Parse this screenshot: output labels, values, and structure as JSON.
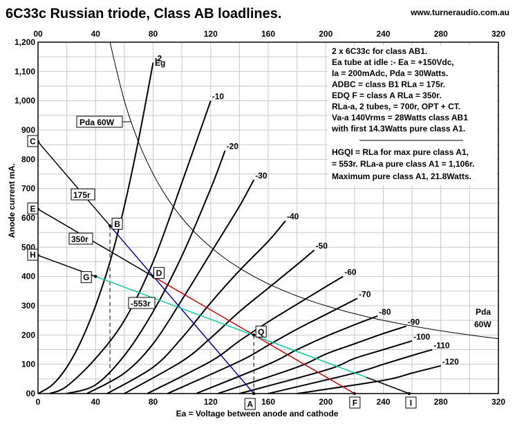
{
  "header": {
    "title": "6C33c Russian triode, Class AB loadlines.",
    "website": "www.turneraudio.com.au"
  },
  "chart_data": {
    "type": "line",
    "xlabel": "Ea = Voltage between anode and cathode",
    "ylabel": "Anode current mA.",
    "xlim": [
      0,
      320
    ],
    "ylim": [
      0,
      1200
    ],
    "x_ticks": [
      0,
      40,
      80,
      120,
      160,
      200,
      240,
      280,
      320
    ],
    "x_ticks_top": [
      0,
      40,
      80,
      120,
      160,
      200,
      240,
      280,
      320
    ],
    "y_ticks": [
      0,
      100,
      200,
      300,
      400,
      500,
      600,
      700,
      800,
      900,
      1000,
      1100,
      1200
    ],
    "y_tick_labels": [
      "00",
      "100",
      "200",
      "300",
      "400",
      "500",
      "600",
      "700",
      "800",
      "900",
      "1,000",
      "1,100",
      "1,200"
    ],
    "grid": true,
    "eg_label": "Eg",
    "grid_bias_curves": [
      {
        "name": "-2",
        "x": [
          0,
          10,
          20,
          30,
          40,
          50,
          60,
          70,
          80
        ],
        "y": [
          0,
          30,
          90,
          180,
          300,
          450,
          640,
          870,
          1130
        ]
      },
      {
        "name": "-10",
        "x": [
          8,
          20,
          40,
          60,
          80,
          100,
          120
        ],
        "y": [
          0,
          25,
          120,
          250,
          450,
          720,
          1000
        ]
      },
      {
        "name": "-20",
        "x": [
          20,
          40,
          60,
          80,
          100,
          120,
          130
        ],
        "y": [
          0,
          30,
          130,
          280,
          470,
          700,
          830
        ]
      },
      {
        "name": "-30",
        "x": [
          34,
          60,
          80,
          100,
          120,
          140,
          150
        ],
        "y": [
          0,
          70,
          170,
          320,
          480,
          640,
          730
        ]
      },
      {
        "name": "-40",
        "x": [
          48,
          80,
          100,
          120,
          140,
          160,
          172
        ],
        "y": [
          0,
          90,
          190,
          310,
          420,
          520,
          590
        ]
      },
      {
        "name": "-50",
        "x": [
          60,
          100,
          120,
          140,
          160,
          180,
          192
        ],
        "y": [
          0,
          110,
          190,
          280,
          360,
          440,
          490
        ]
      },
      {
        "name": "-60",
        "x": [
          76,
          120,
          140,
          160,
          180,
          200,
          212
        ],
        "y": [
          0,
          110,
          180,
          245,
          305,
          365,
          400
        ]
      },
      {
        "name": "-70",
        "x": [
          90,
          140,
          160,
          180,
          200,
          222
        ],
        "y": [
          0,
          110,
          165,
          220,
          270,
          325
        ]
      },
      {
        "name": "-80",
        "x": [
          110,
          160,
          180,
          200,
          220,
          236
        ],
        "y": [
          0,
          100,
          150,
          195,
          235,
          265
        ]
      },
      {
        "name": "-90",
        "x": [
          125,
          180,
          200,
          220,
          240,
          256
        ],
        "y": [
          0,
          90,
          135,
          170,
          205,
          230
        ]
      },
      {
        "name": "-100",
        "x": [
          140,
          200,
          220,
          240,
          260
        ],
        "y": [
          0,
          80,
          120,
          150,
          180
        ]
      },
      {
        "name": "-110",
        "x": [
          160,
          220,
          240,
          260,
          274
        ],
        "y": [
          0,
          70,
          100,
          130,
          150
        ]
      },
      {
        "name": "-120",
        "x": [
          180,
          240,
          260,
          280
        ],
        "y": [
          0,
          45,
          70,
          95
        ]
      }
    ],
    "dissipation_curve": {
      "label_left": "Pda 60W",
      "label_right_line1": "Pda",
      "label_right_line2": "60W",
      "watts": 60,
      "x_from": 50,
      "x_to": 320
    },
    "loadlines": [
      {
        "name": "175r",
        "color": "#0000bb",
        "x": [
          50,
          150
        ],
        "y": [
          573,
          0
        ]
      },
      {
        "name": "350r",
        "color": "#cc0000",
        "x": [
          80,
          220
        ],
        "y": [
          400,
          0
        ]
      },
      {
        "name": "553r",
        "color": "#00cc99",
        "x": [
          40,
          228
        ],
        "y": [
          400,
          56
        ]
      },
      {
        "name": "C-175r",
        "color": "#000000",
        "x": [
          0,
          50
        ],
        "y": [
          860,
          573
        ]
      },
      {
        "name": "E-350r",
        "color": "#000000",
        "x": [
          0,
          80
        ],
        "y": [
          630,
          400
        ]
      },
      {
        "name": "H-553r",
        "color": "#000000",
        "x": [
          0,
          40
        ],
        "y": [
          472,
          400
        ]
      },
      {
        "name": "I-tail",
        "color": "#000000",
        "x": [
          228,
          258
        ],
        "y": [
          56,
          0
        ]
      }
    ],
    "dashed_verticals": [
      {
        "x": 50,
        "y_top": 573
      },
      {
        "x": 150,
        "y_top": 200
      }
    ],
    "points": [
      {
        "name": "A",
        "x": 150,
        "y": 0
      },
      {
        "name": "B",
        "x": 50,
        "y": 573
      },
      {
        "name": "C",
        "x": 0,
        "y": 860
      },
      {
        "name": "D",
        "x": 80,
        "y": 400
      },
      {
        "name": "E",
        "x": 0,
        "y": 630
      },
      {
        "name": "F",
        "x": 220,
        "y": 0
      },
      {
        "name": "G",
        "x": 40,
        "y": 400
      },
      {
        "name": "H",
        "x": 0,
        "y": 472
      },
      {
        "name": "I",
        "x": 258,
        "y": 0
      },
      {
        "name": "Q",
        "x": 150,
        "y": 200
      }
    ],
    "loadline_labels": [
      "175r",
      "350r",
      "-553r"
    ],
    "notes": [
      "2 x 6C33c for  class AB1.",
      "Ea tube at idle :-  Ea = +150Vdc,",
      "Ia = 200mAdc, Pda = 30Watts.",
      "ADBC =  class B1 RLa = 175r.",
      "EDQ F =  class A  RLa =  350r.",
      "RLa-a, 2 tubes, = 700r, OPT + CT.",
      "Va-a 140Vrms = 28Watts  class AB1",
      "with first 14.3Watts pure class A1.",
      "HGQI = RLa for max pure class A1,",
      "= 553r. RLa-a pure class A1 = 1,106r.",
      "Maximum pure  class A1, 21.8Watts."
    ]
  }
}
